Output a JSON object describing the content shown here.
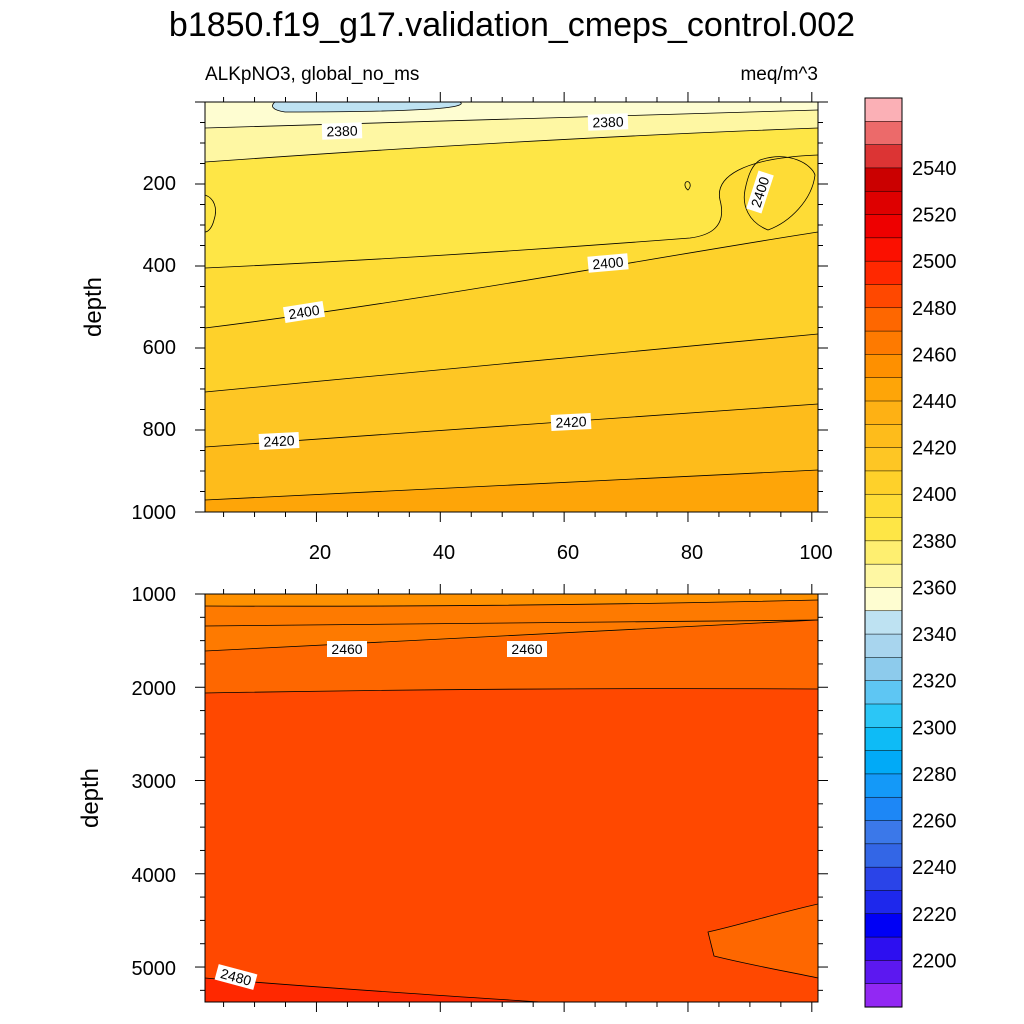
{
  "chart_data": {
    "type": "contour",
    "title": "b1850.f19_g17.validation_cmeps_control.002",
    "subtitle_left": "ALKpNO3, global_no_ms",
    "subtitle_right": "meq/m^3",
    "upper_panel": {
      "ylabel": "depth",
      "ylim": [
        1000,
        0
      ],
      "xlim": [
        2,
        101
      ],
      "yticks": [
        "200",
        "400",
        "600",
        "800",
        "1000"
      ],
      "xticks": [
        "20",
        "40",
        "60",
        "80",
        "100"
      ],
      "contour_labels": [
        "2380",
        "2380",
        "2400",
        "2400",
        "2400",
        "2420",
        "2420"
      ]
    },
    "lower_panel": {
      "ylabel": "depth",
      "ylim": [
        5375,
        1000
      ],
      "xlim": [
        2,
        101
      ],
      "yticks": [
        "1000",
        "2000",
        "3000",
        "4000",
        "5000"
      ],
      "contour_labels": [
        "2460",
        "2460",
        "2480"
      ]
    },
    "colorbar": {
      "levels": [
        2195,
        2200,
        2210,
        2220,
        2230,
        2240,
        2250,
        2260,
        2270,
        2280,
        2290,
        2300,
        2310,
        2320,
        2330,
        2340,
        2350,
        2360,
        2370,
        2380,
        2390,
        2400,
        2410,
        2420,
        2430,
        2440,
        2450,
        2460,
        2470,
        2480,
        2490,
        2500,
        2510,
        2520,
        2530,
        2540,
        2550,
        2560
      ],
      "labels": [
        "2200",
        "2220",
        "2240",
        "2260",
        "2280",
        "2300",
        "2320",
        "2340",
        "2360",
        "2380",
        "2400",
        "2420",
        "2440",
        "2460",
        "2480",
        "2500",
        "2520",
        "2540"
      ],
      "colors": [
        "#9228f3",
        "#5c18f0",
        "#2d0ff0",
        "#0000f5",
        "#1e28ec",
        "#2a44e8",
        "#3366e6",
        "#3b78e9",
        "#1d87f6",
        "#1499f8",
        "#01aaf7",
        "#0ebbf6",
        "#2bc6f6",
        "#5ec6f3",
        "#8dcbec",
        "#a8d5ee",
        "#bee2f2",
        "#fefdd1",
        "#fef7a3",
        "#feef70",
        "#fee646",
        "#fedc36",
        "#fed12a",
        "#fec624",
        "#febc1b",
        "#feb114",
        "#fea508",
        "#fe9000",
        "#fe7a00",
        "#fe6700",
        "#ff4800",
        "#ff2800",
        "#fb1000",
        "#ee0000",
        "#de0000",
        "#cb0000",
        "#dc3434",
        "#ec6a6a",
        "#fbb0b6"
      ]
    }
  }
}
